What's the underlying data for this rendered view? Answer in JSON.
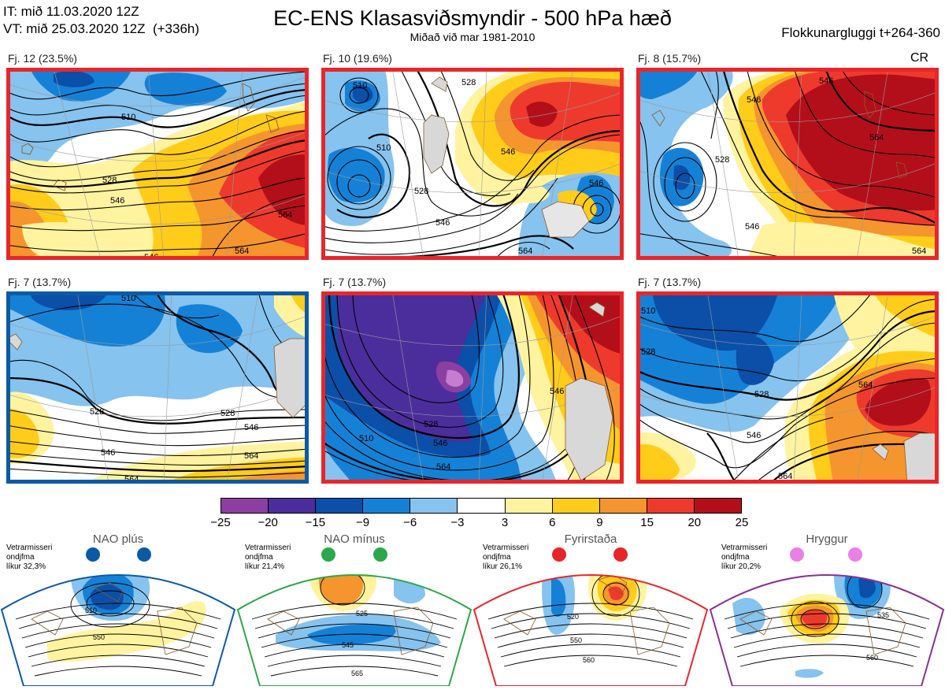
{
  "header": {
    "initial_time": "IT: mið 11.03.2020 12Z",
    "valid_time": "VT: mið 25.03.2020 12Z  (+336h)",
    "title": "EC-ENS Klasasviðsmyndir - 500 hPa hæð",
    "subtitle": "Miðað við mar 1981-2010",
    "window": "Flokkunargluggi t+264-360"
  },
  "panels": [
    {
      "label": "Fj. 12 (23.5%)",
      "border": "#e8262a",
      "regime_tag": "",
      "contour_labels": [
        "510",
        "528",
        "546",
        "546",
        "564",
        "564"
      ]
    },
    {
      "label": "Fj. 10 (19.6%)",
      "border": "#e8262a",
      "regime_tag": "",
      "contour_labels": [
        "510",
        "510",
        "528",
        "528",
        "546",
        "546",
        "546",
        "564"
      ]
    },
    {
      "label": "Fj. 8 (15.7%)",
      "border": "#e8262a",
      "regime_tag": "CR",
      "contour_labels": [
        "546",
        "546",
        "528",
        "564",
        "546",
        "564"
      ]
    },
    {
      "label": "Fj. 7 (13.7%)",
      "border": "#0b5aa6",
      "regime_tag": "",
      "contour_labels": [
        "510",
        "528",
        "528",
        "546",
        "546",
        "564",
        "564"
      ]
    },
    {
      "label": "Fj. 7 (13.7%)",
      "border": "#e8262a",
      "regime_tag": "",
      "contour_labels": [
        "510",
        "528",
        "546",
        "546",
        "564"
      ]
    },
    {
      "label": "Fj. 7 (13.7%)",
      "border": "#e8262a",
      "regime_tag": "",
      "contour_labels": [
        "510",
        "528",
        "528",
        "546",
        "564",
        "564"
      ]
    }
  ],
  "colorbar": {
    "ticks": [
      "−25",
      "−20",
      "−15",
      "−9",
      "−6",
      "−3",
      "3",
      "6",
      "9",
      "15",
      "20",
      "25"
    ],
    "colors": [
      "#8b3fa0",
      "#4b2e9c",
      "#0b4fa8",
      "#1581d6",
      "#86c3ee",
      "#ffffff",
      "#fff3a0",
      "#ffcc1a",
      "#f5952e",
      "#ee3a2c",
      "#b30f1a"
    ]
  },
  "regimes": [
    {
      "name": "NAO plús",
      "color": "#0b5aa6",
      "dot_color": "#0b5aa6",
      "info": [
        "Vetrarmisseri",
        "ondjfma",
        "líkur 32,3%"
      ],
      "contour_labels": [
        "510",
        "550"
      ]
    },
    {
      "name": "NAO mínus",
      "color": "#2aa84a",
      "dot_color": "#2aa84a",
      "info": [
        "Vetrarmisseri",
        "ondjfma",
        "líkur 21,4%"
      ],
      "contour_labels": [
        "525",
        "545",
        "565"
      ]
    },
    {
      "name": "Fyrirstaða",
      "color": "#e8262a",
      "dot_color": "#e8262a",
      "info": [
        "Vetrarmisseri",
        "ondjfma",
        "líkur 26,1%"
      ],
      "contour_labels": [
        "520",
        "550",
        "560"
      ]
    },
    {
      "name": "Hryggur",
      "color": "#8a2f95",
      "dot_color": "#e880e8",
      "info": [
        "Vetrarmisseri",
        "ondjfma",
        "líkur 20,2%"
      ],
      "contour_labels": [
        "505",
        "535",
        "560"
      ]
    }
  ]
}
